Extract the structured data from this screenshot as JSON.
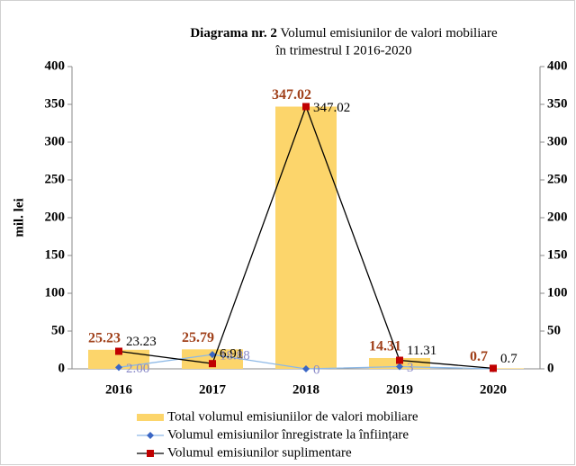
{
  "chart_data": {
    "type": "bar",
    "title_prefix": "Diagrama  nr. 2",
    "title_lines": [
      "Volumul emisiunilor de valori mobiliare",
      "în trimestrul I 2016-2020"
    ],
    "ylabel": "mil. lei",
    "categories": [
      "2016",
      "2017",
      "2018",
      "2019",
      "2020"
    ],
    "series": [
      {
        "name": "Total volumul emisiuniilor de valori mobiliare",
        "type": "bar",
        "color": "#fcd56b",
        "label_color": "#a0401a",
        "values": [
          25.23,
          25.79,
          347.02,
          14.31,
          0.7
        ]
      },
      {
        "name": "Volumul emisiunilor înregistrate la înființare",
        "type": "line",
        "color": "#3a66c4",
        "line_color": "#8cb8e6",
        "label_color": "#8a8ac8",
        "values": [
          2,
          18.88,
          0,
          3,
          0
        ],
        "value_labels": [
          "2.00",
          "18.88",
          "0",
          "3",
          null
        ]
      },
      {
        "name": "Volumul emisiunilor suplimentare",
        "type": "line",
        "color": "#c00000",
        "line_color": "#000000",
        "label_color": "#000000",
        "values": [
          23.23,
          6.91,
          347.02,
          11.31,
          0.7
        ]
      }
    ],
    "ylim": [
      0,
      400
    ],
    "yticks": [
      0,
      50,
      100,
      150,
      200,
      250,
      300,
      350,
      400
    ],
    "y2lim": [
      0,
      400
    ],
    "y2ticks": [
      0,
      50,
      100,
      150,
      200,
      250,
      300,
      350,
      400
    ],
    "legend": "bottom"
  }
}
